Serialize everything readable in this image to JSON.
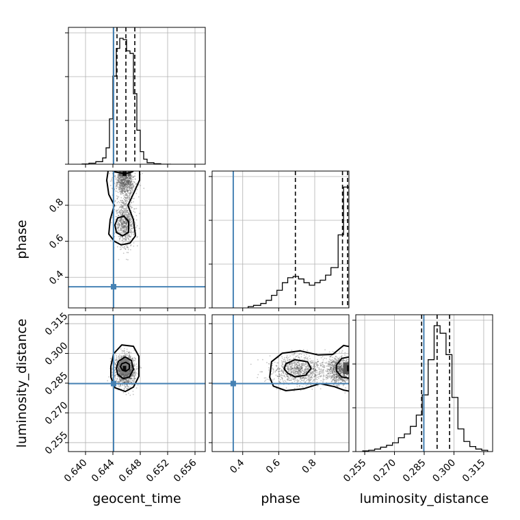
{
  "chart_data": {
    "type": "corner",
    "parameters": [
      "geocent_time",
      "phase",
      "luminosity_distance"
    ],
    "axis_labels": {
      "geocent_time": "geocent_time",
      "phase": "phase",
      "luminosity_distance": "luminosity_distance"
    },
    "ranges": {
      "geocent_time": [
        0.6375,
        0.6575
      ],
      "phase": [
        0.23,
        0.99
      ],
      "luminosity_distance": [
        0.2505,
        0.3195
      ]
    },
    "ticks": {
      "geocent_time": [
        "0.640",
        "0.644",
        "0.648",
        "0.652",
        "0.656"
      ],
      "phase": [
        "0.4",
        "0.6",
        "0.8"
      ],
      "luminosity_distance": [
        "0.255",
        "0.270",
        "0.285",
        "0.300",
        "0.315"
      ]
    },
    "truths": {
      "geocent_time": 0.6441,
      "phase": 0.3475,
      "luminosity_distance": 0.2848
    },
    "quantiles": {
      "geocent_time": [
        0.6446,
        0.6459,
        0.6472
      ],
      "phase": [
        0.6925,
        0.9542,
        0.9825
      ],
      "luminosity_distance": [
        0.2837,
        0.2915,
        0.2978
      ]
    },
    "histograms": {
      "geocent_time": {
        "edges": [
          0.6395,
          0.6405,
          0.6415,
          0.6425,
          0.643,
          0.6435,
          0.644,
          0.6445,
          0.645,
          0.6455,
          0.646,
          0.6465,
          0.647,
          0.6475,
          0.648,
          0.6485,
          0.649,
          0.65,
          0.651,
          0.6525
        ],
        "counts": [
          0.002,
          0.008,
          0.02,
          0.05,
          0.13,
          0.36,
          0.7,
          0.92,
          1.0,
          0.99,
          0.9,
          0.88,
          0.56,
          0.27,
          0.1,
          0.04,
          0.012,
          0.004,
          0
        ]
      },
      "phase": {
        "edges": [
          0.43,
          0.46,
          0.5,
          0.53,
          0.56,
          0.59,
          0.62,
          0.65,
          0.68,
          0.71,
          0.74,
          0.77,
          0.8,
          0.83,
          0.86,
          0.89,
          0.93,
          0.96,
          0.99
        ],
        "counts": [
          0.01,
          0.02,
          0.035,
          0.06,
          0.1,
          0.14,
          0.2,
          0.24,
          0.25,
          0.23,
          0.2,
          0.18,
          0.2,
          0.22,
          0.26,
          0.32,
          0.58,
          0.96
        ]
      },
      "luminosity_distance": {
        "edges": [
          0.254,
          0.257,
          0.26,
          0.263,
          0.266,
          0.269,
          0.272,
          0.275,
          0.278,
          0.281,
          0.284,
          0.287,
          0.29,
          0.293,
          0.296,
          0.299,
          0.302,
          0.305,
          0.308,
          0.311,
          0.314,
          0.317
        ],
        "counts": [
          0.005,
          0.01,
          0.02,
          0.035,
          0.05,
          0.07,
          0.11,
          0.14,
          0.2,
          0.29,
          0.45,
          0.73,
          1.0,
          0.94,
          0.77,
          0.43,
          0.18,
          0.08,
          0.04,
          0.02,
          0.01
        ]
      }
    },
    "contours": {
      "phase_vs_geocent_time": [
        [
          [
            0.6433,
            0.99
          ],
          [
            0.6431,
            0.94
          ],
          [
            0.6434,
            0.86
          ],
          [
            0.6442,
            0.8
          ],
          [
            0.6436,
            0.72
          ],
          [
            0.6434,
            0.64
          ],
          [
            0.6442,
            0.6
          ],
          [
            0.6452,
            0.58
          ],
          [
            0.6465,
            0.59
          ],
          [
            0.6473,
            0.63
          ],
          [
            0.647,
            0.72
          ],
          [
            0.6462,
            0.8
          ],
          [
            0.6472,
            0.88
          ],
          [
            0.6479,
            0.94
          ],
          [
            0.6479,
            0.99
          ]
        ],
        [
          [
            0.644,
            0.99
          ],
          [
            0.6443,
            0.985
          ],
          [
            0.6458,
            0.975
          ],
          [
            0.6468,
            0.985
          ],
          [
            0.647,
            0.99
          ]
        ],
        [
          [
            0.6443,
            0.69
          ],
          [
            0.6445,
            0.65
          ],
          [
            0.6454,
            0.63
          ],
          [
            0.6463,
            0.65
          ],
          [
            0.6463,
            0.71
          ],
          [
            0.6456,
            0.74
          ],
          [
            0.6447,
            0.73
          ]
        ]
      ],
      "luminosity_distance_vs_geocent_time": [
        [
          [
            0.6437,
            0.2935
          ],
          [
            0.6441,
            0.2998
          ],
          [
            0.6453,
            0.3043
          ],
          [
            0.647,
            0.3036
          ],
          [
            0.6478,
            0.2985
          ],
          [
            0.6478,
            0.2885
          ],
          [
            0.647,
            0.283
          ],
          [
            0.6458,
            0.2808
          ],
          [
            0.6443,
            0.2827
          ],
          [
            0.6437,
            0.288
          ]
        ],
        [
          [
            0.6445,
            0.2925
          ],
          [
            0.6448,
            0.296
          ],
          [
            0.6458,
            0.2982
          ],
          [
            0.6467,
            0.2965
          ],
          [
            0.647,
            0.292
          ],
          [
            0.6464,
            0.288
          ],
          [
            0.6455,
            0.2873
          ],
          [
            0.6447,
            0.2895
          ]
        ],
        [
          [
            0.6451,
            0.2933
          ],
          [
            0.6453,
            0.2948
          ],
          [
            0.6459,
            0.2955
          ],
          [
            0.6464,
            0.2945
          ],
          [
            0.6464,
            0.2922
          ],
          [
            0.6459,
            0.291
          ],
          [
            0.6454,
            0.2915
          ]
        ]
      ],
      "luminosity_distance_vs_phase": [
        [
          [
            0.99,
            0.3035
          ],
          [
            0.96,
            0.304
          ],
          [
            0.9,
            0.2995
          ],
          [
            0.82,
            0.2992
          ],
          [
            0.72,
            0.3013
          ],
          [
            0.62,
            0.3001
          ],
          [
            0.56,
            0.2958
          ],
          [
            0.55,
            0.288
          ],
          [
            0.57,
            0.2835
          ],
          [
            0.64,
            0.2812
          ],
          [
            0.74,
            0.2822
          ],
          [
            0.83,
            0.2848
          ],
          [
            0.91,
            0.2832
          ],
          [
            0.96,
            0.2815
          ],
          [
            0.99,
            0.281
          ]
        ],
        [
          [
            0.99,
            0.2982
          ],
          [
            0.95,
            0.2975
          ],
          [
            0.92,
            0.294
          ],
          [
            0.92,
            0.2912
          ],
          [
            0.95,
            0.288
          ],
          [
            0.99,
            0.2875
          ]
        ],
        [
          [
            0.64,
            0.2948
          ],
          [
            0.69,
            0.2968
          ],
          [
            0.76,
            0.2958
          ],
          [
            0.78,
            0.2925
          ],
          [
            0.75,
            0.289
          ],
          [
            0.69,
            0.2882
          ],
          [
            0.65,
            0.29
          ],
          [
            0.63,
            0.2922
          ]
        ]
      ]
    },
    "density_blobs": {
      "phase_vs_geocent_time": [
        {
          "x": 0.6457,
          "y": 0.975,
          "w": 0.0006,
          "h": 0.025,
          "level": 1.0
        },
        {
          "x": 0.6451,
          "y": 0.975,
          "w": 0.0005,
          "h": 0.025,
          "level": 0.55
        },
        {
          "x": 0.6464,
          "y": 0.975,
          "w": 0.0005,
          "h": 0.025,
          "level": 0.6
        }
      ],
      "luminosity_distance_vs_geocent_time": [
        {
          "x": 0.6457,
          "y": 0.2935,
          "w": 0.0013,
          "h": 0.0075,
          "level": 0.4
        },
        {
          "x": 0.6457,
          "y": 0.2925,
          "w": 0.0005,
          "h": 0.0025,
          "level": 1.0
        }
      ],
      "luminosity_distance_vs_phase": [
        {
          "x": 0.975,
          "y": 0.2925,
          "w": 0.035,
          "h": 0.006,
          "level": 0.6
        },
        {
          "x": 0.985,
          "y": 0.2925,
          "w": 0.012,
          "h": 0.003,
          "level": 1.0
        }
      ]
    },
    "scatter": {
      "phase_vs_geocent_time": {
        "center_x": 0.6458,
        "spread_x": 0.0013,
        "center_y": 0.78,
        "spread_y": 0.15,
        "n": 1600
      },
      "luminosity_distance_vs_geocent_time": {
        "center_x": 0.6458,
        "spread_x": 0.0013,
        "center_y": 0.2915,
        "spread_y": 0.0065,
        "n": 1600
      },
      "luminosity_distance_vs_phase": {
        "center_x": 0.82,
        "spread_x": 0.14,
        "center_y": 0.2915,
        "spread_y": 0.0065,
        "n": 1800
      }
    },
    "grid": true
  }
}
